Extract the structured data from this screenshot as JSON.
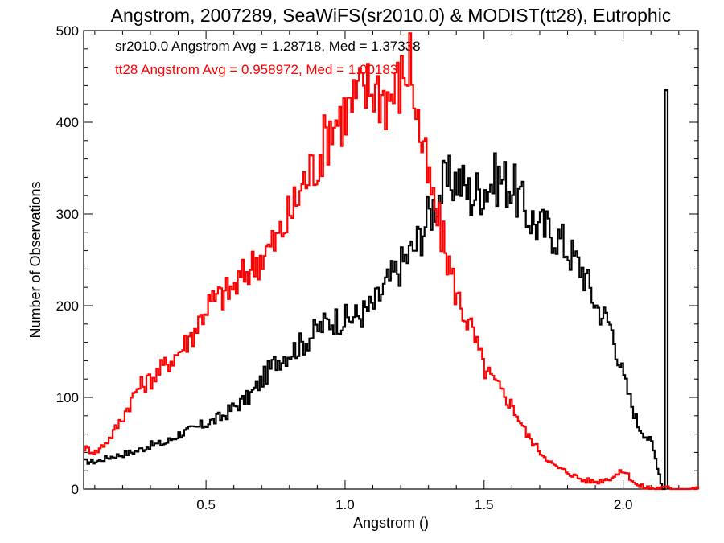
{
  "chart_data": {
    "type": "line",
    "title": "Angstrom, 2007289, SeaWiFS(sr2010.0) & MODIST(tt28), Eutrophic",
    "xlabel": "Angstrom ()",
    "ylabel": "Number of Observations",
    "xlim": [
      0.06,
      2.27
    ],
    "ylim": [
      0,
      500
    ],
    "x_ticks": [
      0.5,
      1.0,
      1.5,
      2.0
    ],
    "x_tick_labels": [
      "0.5",
      "1.0",
      "1.5",
      "2.0"
    ],
    "y_ticks": [
      0,
      100,
      200,
      300,
      400,
      500
    ],
    "y_tick_labels": [
      "0",
      "100",
      "200",
      "300",
      "400",
      "500"
    ],
    "annotations": [
      {
        "text": "sr2010.0 Angstrom Avg = 1.28718, Med = 1.37338",
        "color": "#000000"
      },
      {
        "text": "tt28 Angstrom Avg = 0.958972, Med = 1.00183",
        "color": "#ff0000"
      }
    ],
    "series": [
      {
        "name": "sr2010.0",
        "color": "#000000",
        "x": [
          0.06,
          0.1,
          0.15,
          0.2,
          0.25,
          0.3,
          0.35,
          0.4,
          0.45,
          0.5,
          0.55,
          0.6,
          0.65,
          0.7,
          0.75,
          0.8,
          0.85,
          0.9,
          0.95,
          1.0,
          1.05,
          1.1,
          1.15,
          1.2,
          1.25,
          1.3,
          1.35,
          1.4,
          1.45,
          1.5,
          1.55,
          1.6,
          1.65,
          1.7,
          1.75,
          1.8,
          1.85,
          1.9,
          1.95,
          2.0,
          2.05,
          2.1,
          2.14,
          2.15,
          2.16
        ],
        "values": [
          30,
          30,
          35,
          38,
          42,
          48,
          50,
          60,
          65,
          72,
          78,
          90,
          100,
          120,
          140,
          150,
          160,
          175,
          185,
          185,
          190,
          200,
          225,
          245,
          265,
          300,
          330,
          340,
          320,
          330,
          340,
          330,
          300,
          285,
          280,
          260,
          240,
          200,
          180,
          120,
          70,
          50,
          0,
          435,
          0
        ]
      },
      {
        "name": "tt28",
        "color": "#ff0000",
        "x": [
          0.06,
          0.1,
          0.15,
          0.2,
          0.25,
          0.3,
          0.35,
          0.4,
          0.45,
          0.5,
          0.55,
          0.6,
          0.65,
          0.7,
          0.75,
          0.8,
          0.85,
          0.9,
          0.95,
          1.0,
          1.05,
          1.1,
          1.15,
          1.2,
          1.23,
          1.26,
          1.3,
          1.35,
          1.4,
          1.45,
          1.5,
          1.55,
          1.6,
          1.65,
          1.7,
          1.75,
          1.8,
          1.85,
          1.9,
          1.95,
          2.0,
          2.05,
          2.1,
          2.15,
          2.2,
          2.27
        ],
        "values": [
          45,
          40,
          55,
          80,
          110,
          120,
          135,
          150,
          170,
          200,
          210,
          220,
          240,
          255,
          270,
          300,
          335,
          360,
          400,
          410,
          430,
          440,
          425,
          445,
          470,
          400,
          330,
          270,
          210,
          175,
          130,
          110,
          90,
          60,
          40,
          25,
          18,
          10,
          8,
          12,
          20,
          3,
          1,
          1,
          0,
          0
        ]
      }
    ]
  }
}
